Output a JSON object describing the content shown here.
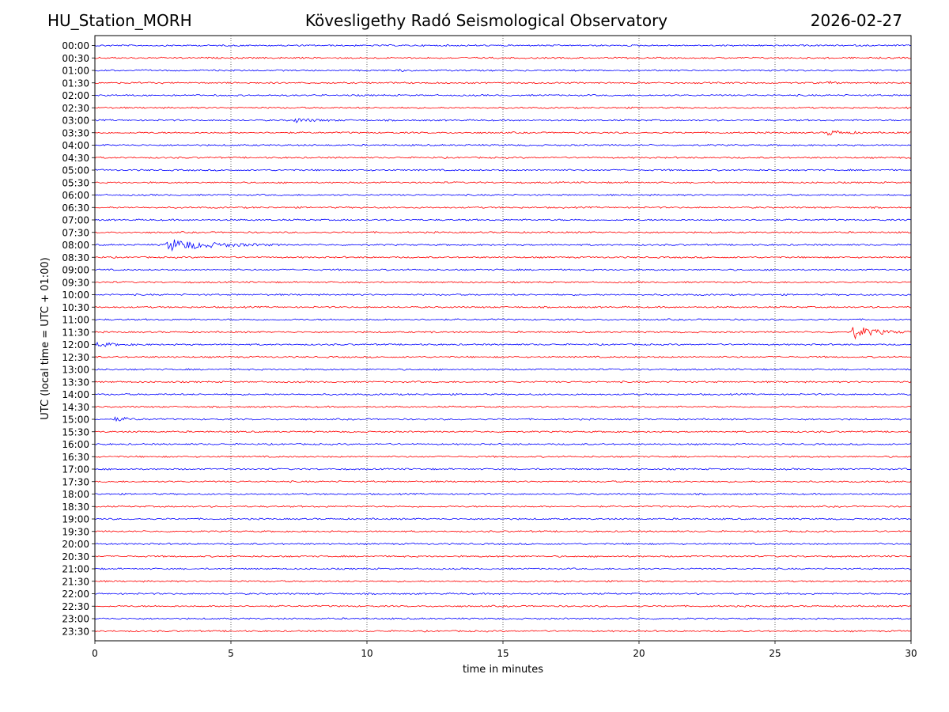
{
  "header": {
    "station": "HU_Station_MORH",
    "observatory": "Kövesligethy Radó Seismological Observatory",
    "date": "2026-02-27"
  },
  "chart_data": {
    "type": "line",
    "title": "Kövesligethy Radó Seismological Observatory",
    "xlabel": "time in minutes",
    "ylabel": "UTC (local time = UTC + 01:00)",
    "xlim": [
      0,
      30
    ],
    "xticks": [
      0,
      5,
      10,
      15,
      20,
      25,
      30
    ],
    "xtick_labels": [
      "0",
      "5",
      "10",
      "15",
      "20",
      "25",
      "30"
    ],
    "grid": "vertical dotted at x ticks",
    "colors": {
      "even_rows": "#0000ff",
      "odd_rows": "#ff0000"
    },
    "rows": [
      "00:00",
      "00:30",
      "01:00",
      "01:30",
      "02:00",
      "02:30",
      "03:00",
      "03:30",
      "04:00",
      "04:30",
      "05:00",
      "05:30",
      "06:00",
      "06:30",
      "07:00",
      "07:30",
      "08:00",
      "08:30",
      "09:00",
      "09:30",
      "10:00",
      "10:30",
      "11:00",
      "11:30",
      "12:00",
      "12:30",
      "13:00",
      "13:30",
      "14:00",
      "14:30",
      "15:00",
      "15:30",
      "16:00",
      "16:30",
      "17:00",
      "17:30",
      "18:00",
      "18:30",
      "19:00",
      "19:30",
      "20:00",
      "20:30",
      "21:00",
      "21:30",
      "22:00",
      "22:30",
      "23:00",
      "23:30"
    ],
    "events": [
      {
        "row": "01:00",
        "start_min": 11.2,
        "duration_min": 0.3,
        "amplitude": 0.35
      },
      {
        "row": "01:30",
        "start_min": 26.9,
        "duration_min": 0.6,
        "amplitude": 0.2
      },
      {
        "row": "03:00",
        "start_min": 7.3,
        "duration_min": 2.0,
        "amplitude": 0.3
      },
      {
        "row": "03:30",
        "start_min": 26.9,
        "duration_min": 1.6,
        "amplitude": 0.4
      },
      {
        "row": "08:00",
        "start_min": 2.6,
        "duration_min": 4.2,
        "amplitude": 0.9
      },
      {
        "row": "11:30",
        "start_min": 12.3,
        "duration_min": 0.4,
        "amplitude": 0.2
      },
      {
        "row": "11:30",
        "start_min": 27.8,
        "duration_min": 2.2,
        "amplitude": 1.0
      },
      {
        "row": "12:00",
        "start_min": 0.0,
        "duration_min": 2.0,
        "amplitude": 0.3
      },
      {
        "row": "15:00",
        "start_min": 0.7,
        "duration_min": 1.6,
        "amplitude": 0.3
      }
    ]
  }
}
